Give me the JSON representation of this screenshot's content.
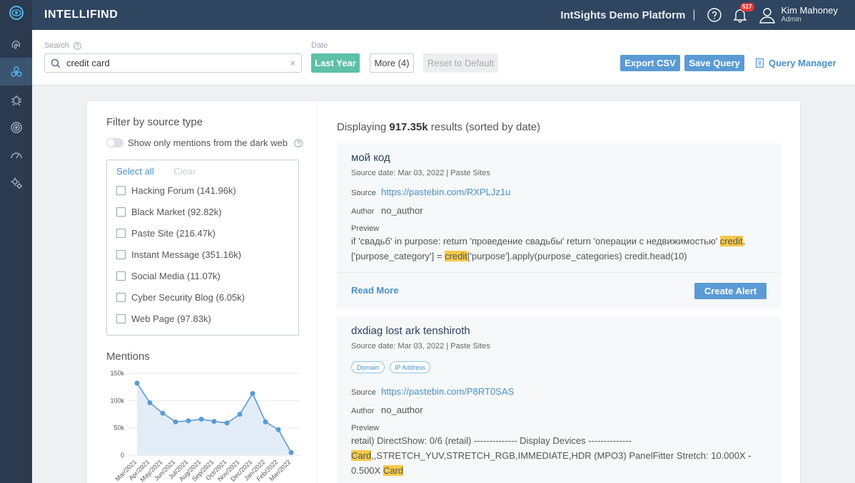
{
  "brand": "INTELLIFIND",
  "platform": "IntSights Demo Platform",
  "separator": "|",
  "notifications_count": "517",
  "user": {
    "name": "Kim Mahoney",
    "role": "Admin"
  },
  "search": {
    "label": "Search",
    "value": "credit card",
    "clear_symbol": "×"
  },
  "date": {
    "label": "Date",
    "last_year": "Last Year",
    "more": "More (4)",
    "reset": "Reset to Default"
  },
  "actions": {
    "export": "Export CSV",
    "save": "Save Query",
    "manager": "Query Manager"
  },
  "filter": {
    "title": "Filter by source type",
    "dark_web_toggle": "Show only mentions from the dark web",
    "select_all": "Select all",
    "clear": "Clear",
    "sources": [
      "Hacking Forum (141.96k)",
      "Black Market (92.82k)",
      "Paste Site (216.47k)",
      "Instant Message (351.16k)",
      "Social Media (11.07k)",
      "Cyber Security Blog (6.05k)",
      "Web Page (97.83k)"
    ]
  },
  "mentions_title": "Mentions",
  "chart_data": {
    "type": "area",
    "x": [
      "Mar/2021",
      "Apr/2021",
      "May/2021",
      "Jun/2021",
      "Jul/2021",
      "Aug/2021",
      "Sep/2021",
      "Oct/2021",
      "Nov/2021",
      "Dec/2021",
      "Jan/2022",
      "Feb/2022",
      "Mar/2022"
    ],
    "values": [
      132,
      96,
      77,
      61,
      63,
      66,
      62,
      59,
      75,
      113,
      61,
      47,
      5
    ],
    "yticks": [
      "150k",
      "100k",
      "50k",
      "0"
    ],
    "ylim": [
      0,
      150
    ],
    "colors": {
      "line": "#5b9bd5",
      "fill": "#dce9f6"
    }
  },
  "results": {
    "prefix": "Displaying ",
    "count": "917.35k",
    "suffix": " results (sorted by date)",
    "items": [
      {
        "title": "мой код",
        "meta": "Source date: Mar 03, 2022 | Paste Sites",
        "source_label": "Source",
        "source_url": "https://pastebin.com/RXPLJz1u",
        "author_label": "Author",
        "author": "no_author",
        "preview_label": "Preview",
        "preview_a": "if 'свадьб' in purpose: return 'проведение свадьбы' return 'операции с недвижимостью' ",
        "preview_hl1": "credit",
        "preview_b": ",",
        "preview_c": "['purpose_category'] = ",
        "preview_hl2": "credit",
        "preview_d": "['purpose'].apply(purpose_categories) credit.head(10)",
        "read_more": "Read More",
        "create_alert": "Create Alert"
      },
      {
        "title": "dxdiag lost ark tenshiroth",
        "meta": "Source date: Mar 03, 2022 | Paste Sites",
        "tags": [
          "Domain",
          "IP Address"
        ],
        "source_label": "Source",
        "source_url": "https://pastebin.com/P8RT0SAS",
        "author_label": "Author",
        "author": "no_author",
        "preview_label": "Preview",
        "preview_a": "retail) DirectShow: 0/6 (retail) -------------- Display Devices --------------",
        "preview_hl1": "Card",
        "preview_b": ",,STRETCH_YUV,STRETCH_RGB,IMMEDIATE,HDR (MPO3) PanelFitter Stretch: 10.000X - 0.500X ",
        "preview_hl2": "Card"
      }
    ]
  }
}
